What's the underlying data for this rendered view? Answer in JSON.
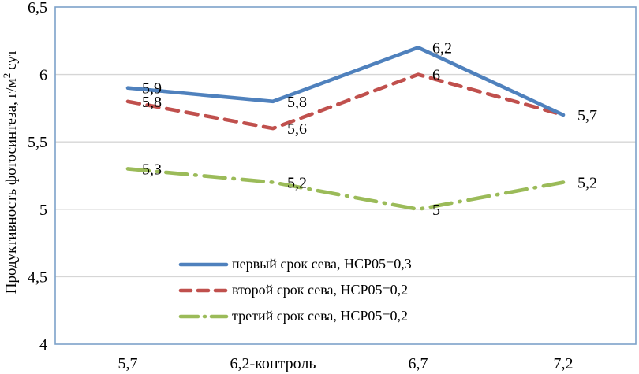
{
  "chart_data": {
    "type": "line",
    "title": "",
    "xlabel": "",
    "ylabel": "Продуктивность фотосинтеза, г/м2 сут",
    "ylabel_prefix": "Продуктивность фотосинтеза, г/м",
    "ylabel_sup": "2",
    "ylabel_suffix": "сут",
    "categories": [
      "5,7",
      "6,2-контроль",
      "6,7",
      "7,2"
    ],
    "ylim": [
      4,
      6.5
    ],
    "grid": true,
    "legend_position": "inside-bottom-center",
    "y_ticks": [
      {
        "value": 6.5,
        "label": "6,5"
      },
      {
        "value": 6.0,
        "label": "6"
      },
      {
        "value": 5.5,
        "label": "5,5"
      },
      {
        "value": 5.0,
        "label": "5"
      },
      {
        "value": 4.5,
        "label": "4,5"
      },
      {
        "value": 4.0,
        "label": "4"
      }
    ],
    "series": [
      {
        "name": "первый срок сева, НСР05=0,3",
        "values": [
          5.9,
          5.8,
          6.2,
          5.7
        ],
        "point_labels": [
          "5,9",
          "5,8",
          "6,2",
          "5,7"
        ],
        "color": "#4f81bd",
        "dash": "solid"
      },
      {
        "name": "второй срок сева, НСР05=0,2",
        "values": [
          5.8,
          5.6,
          6.0,
          5.7
        ],
        "point_labels": [
          "5,8",
          "5,6",
          "6",
          ""
        ],
        "color": "#c0504d",
        "dash": "dashed"
      },
      {
        "name": "третий срок сева, НСР05=0,2",
        "values": [
          5.3,
          5.2,
          5.0,
          5.2
        ],
        "point_labels": [
          "5,3",
          "5,2",
          "5",
          "5,2"
        ],
        "color": "#9bbb59",
        "dash": "dashdot"
      }
    ]
  },
  "colors": {
    "plot_border": "#7da2c9",
    "gridline": "#d6d6d6",
    "text": "#000000",
    "background": "#ffffff"
  }
}
